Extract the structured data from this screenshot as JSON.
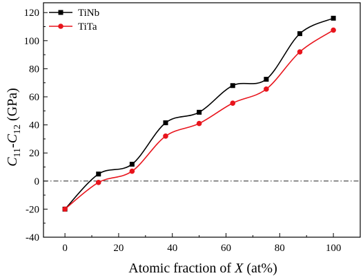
{
  "chart_data": {
    "type": "line",
    "x": [
      0,
      12.5,
      25,
      37.5,
      50,
      62.5,
      75,
      87.5,
      100
    ],
    "series": [
      {
        "name": "TiNb",
        "color": "#000000",
        "marker": "square",
        "values": [
          -20,
          5,
          12,
          41.5,
          49,
          68,
          72.5,
          105,
          116
        ]
      },
      {
        "name": "TiTa",
        "color": "#e8141c",
        "marker": "circle",
        "values": [
          -20,
          -1,
          7,
          32,
          41,
          55.5,
          65.5,
          92,
          107.5
        ]
      }
    ],
    "xlim": [
      -8,
      110
    ],
    "ylim": [
      -40,
      127
    ],
    "xticks": [
      0,
      20,
      40,
      60,
      80,
      100
    ],
    "yticks": [
      -40,
      -20,
      0,
      20,
      40,
      60,
      80,
      100,
      120
    ],
    "reference_line": {
      "y": 0,
      "style": "dash-dot"
    },
    "xlabel": {
      "pre": "Atomic fraction of ",
      "italic": "X",
      "post": " (at%)"
    },
    "ylabel": {
      "c1": "C",
      "s1": "11",
      "dash": "-",
      "c2": "C",
      "s2": "12",
      "unit": " (GPa)"
    },
    "legend_position": "top-left",
    "smooth": true
  }
}
